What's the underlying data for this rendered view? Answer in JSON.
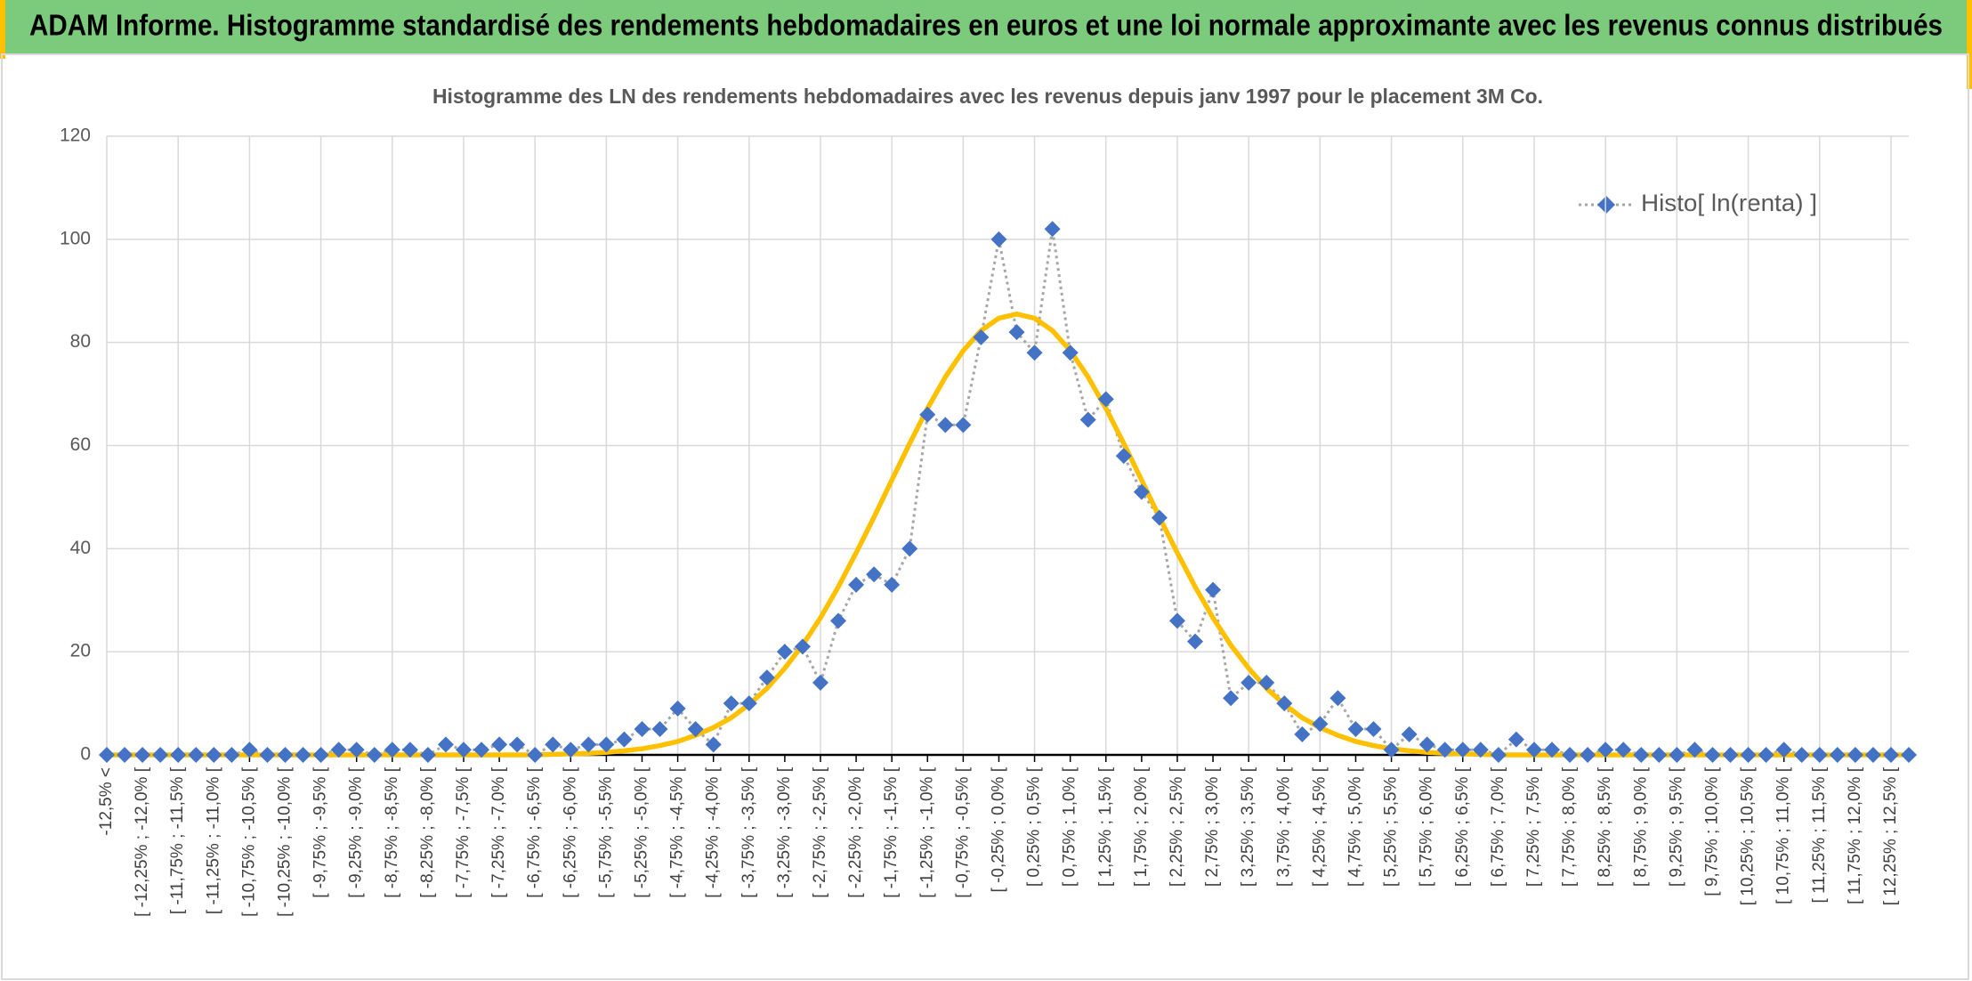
{
  "header": {
    "title": "ADAM Informe. Histogramme standardisé des rendements hebdomadaires en euros et une loi normale approximante avec les revenus connus distribués"
  },
  "chart_data": {
    "type": "line",
    "title": "Histogramme des LN des rendements hebdomadaires avec les revenus depuis janv 1997 pour le placement 3M Co.",
    "categories": [
      "-12,5% <",
      null,
      "[ -12,25% ; -12,0% [",
      null,
      "[ -11,75% ; -11,5% [",
      null,
      "[ -11,25% ; -11,0% [",
      null,
      "[ -10,75% ; -10,5% [",
      null,
      "[ -10,25% ; -10,0% [",
      null,
      "[ -9,75% ; -9,5% [",
      null,
      "[ -9,25% ; -9,0% [",
      null,
      "[ -8,75% ; -8,5% [",
      null,
      "[ -8,25% ; -8,0% [",
      null,
      "[ -7,75% ; -7,5% [",
      null,
      "[ -7,25% ; -7,0% [",
      null,
      "[ -6,75% ; -6,5% [",
      null,
      "[ -6,25% ; -6,0% [",
      null,
      "[ -5,75% ; -5,5% [",
      null,
      "[ -5,25% ; -5,0% [",
      null,
      "[ -4,75% ; -4,5% [",
      null,
      "[ -4,25% ; -4,0% [",
      null,
      "[ -3,75% ; -3,5% [",
      null,
      "[ -3,25% ; -3,0% [",
      null,
      "[ -2,75% ; -2,5% [",
      null,
      "[ -2,25% ; -2,0% [",
      null,
      "[ -1,75% ; -1,5% [",
      null,
      "[ -1,25% ; -1,0% [",
      null,
      "[ -0,75% ; -0,5% [",
      null,
      "[ -0,25% ; 0,0% [",
      null,
      "[ 0,25% ; 0,5% [",
      null,
      "[ 0,75% ; 1,0% [",
      null,
      "[ 1,25% ; 1,5% [",
      null,
      "[ 1,75% ; 2,0% [",
      null,
      "[ 2,25% ; 2,5% [",
      null,
      "[ 2,75% ; 3,0% [",
      null,
      "[ 3,25% ; 3,5% [",
      null,
      "[ 3,75% ; 4,0% [",
      null,
      "[ 4,25% ; 4,5% [",
      null,
      "[ 4,75% ; 5,0% [",
      null,
      "[ 5,25% ; 5,5% [",
      null,
      "[ 5,75% ; 6,0% [",
      null,
      "[ 6,25% ; 6,5% [",
      null,
      "[ 6,75% ; 7,0% [",
      null,
      "[ 7,25% ; 7,5% [",
      null,
      "[ 7,75% ; 8,0% [",
      null,
      "[ 8,25% ; 8,5% [",
      null,
      "[ 8,75% ; 9,0% [",
      null,
      "[ 9,25% ; 9,5% [",
      null,
      "[ 9,75% ; 10,0% [",
      null,
      "[ 10,25% ; 10,5% [",
      null,
      "[ 10,75% ; 11,0% [",
      null,
      "[ 11,25% ; 11,5% [",
      null,
      "[ 11,75% ; 12,0% [",
      null,
      "[ 12,25% ; 12,5% [",
      null
    ],
    "series": [
      {
        "name": "Histo[ ln(renta) ]",
        "color": "#4472c4",
        "line_color": "#a6a6a6",
        "line_style": "dotted",
        "marker": "diamond",
        "values": [
          0,
          0,
          0,
          0,
          0,
          0,
          0,
          0,
          1,
          0,
          0,
          0,
          0,
          1,
          1,
          0,
          1,
          1,
          0,
          2,
          1,
          1,
          2,
          2,
          0,
          2,
          1,
          2,
          2,
          3,
          5,
          5,
          9,
          5,
          2,
          10,
          10,
          15,
          20,
          21,
          14,
          26,
          33,
          35,
          33,
          40,
          66,
          64,
          64,
          81,
          100,
          82,
          78,
          102,
          78,
          65,
          69,
          58,
          51,
          46,
          26,
          22,
          32,
          11,
          14,
          14,
          10,
          4,
          6,
          11,
          5,
          5,
          1,
          4,
          2,
          1,
          1,
          1,
          0,
          3,
          1,
          1,
          0,
          0,
          1,
          1,
          0,
          0,
          0,
          1,
          0,
          0,
          0,
          0,
          1,
          0,
          0,
          0,
          0,
          0,
          0,
          0
        ]
      },
      {
        "color": "#ffc000",
        "line_style": "solid",
        "marker": "none",
        "values": [
          0,
          0,
          0,
          0,
          0,
          0,
          0,
          0,
          0,
          0,
          0,
          0,
          0,
          0,
          0,
          0,
          0,
          0,
          0,
          0,
          0,
          0,
          0,
          0,
          0,
          0.1,
          0.2,
          0.3,
          0.5,
          0.8,
          1.2,
          1.8,
          2.6,
          3.8,
          5.3,
          7.2,
          9.8,
          12.9,
          16.8,
          21.3,
          26.6,
          32.6,
          39.2,
          46.1,
          53.3,
          60.4,
          67.2,
          73.3,
          78.4,
          82.3,
          84.7,
          85.5,
          84.7,
          82.3,
          78.4,
          73.3,
          67.2,
          60.4,
          53.3,
          46.1,
          39.2,
          32.6,
          26.6,
          21.3,
          16.8,
          12.9,
          9.8,
          7.2,
          5.3,
          3.8,
          2.6,
          1.8,
          1.2,
          0.8,
          0.5,
          0.3,
          0.2,
          0.1,
          0,
          0,
          0,
          0,
          0,
          0,
          0,
          0,
          0,
          0,
          0,
          0,
          0,
          0,
          0,
          0,
          0,
          0,
          0,
          0,
          0,
          0,
          0,
          0
        ]
      }
    ],
    "ylim": [
      0,
      120
    ],
    "yticks": [
      0,
      20,
      40,
      60,
      80,
      100,
      120
    ],
    "grid": true,
    "legend": "upper right"
  }
}
